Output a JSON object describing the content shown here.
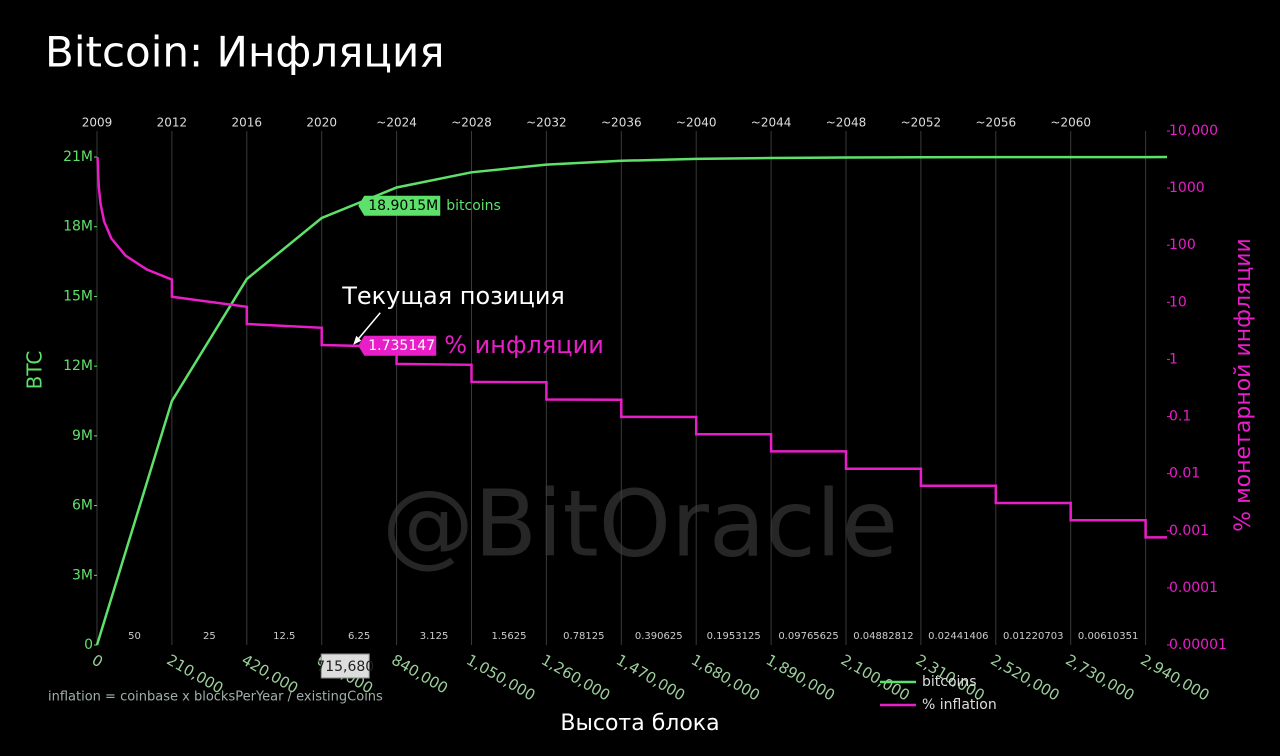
{
  "chart_data": {
    "type": "line",
    "title": "Bitcoin: Инфляция",
    "xlabel": "Высота блока",
    "ylabel": "BTC",
    "y2label": "% монетарной инфляции",
    "watermark": "@BitOracle",
    "formula": "inflation = coinbase x blocksPerYear / existingCoins",
    "xlim": [
      0,
      3000000
    ],
    "xticks": [
      0,
      {
        "value": 210000,
        "label": "210,000"
      },
      {
        "value": 420000,
        "label": "420,000"
      },
      {
        "value": 630000,
        "label": "630,000"
      },
      {
        "value": 840000,
        "label": "840,000"
      },
      {
        "value": 1050000,
        "label": "1,050,000"
      },
      {
        "value": 1260000,
        "label": "1,260,000"
      },
      {
        "value": 1470000,
        "label": "1,470,000"
      },
      {
        "value": 1680000,
        "label": "1,680,000"
      },
      {
        "value": 1890000,
        "label": "1,890,000"
      },
      {
        "value": 2100000,
        "label": "2,100,000"
      },
      {
        "value": 2310000,
        "label": "2,310,000"
      },
      {
        "value": 2520000,
        "label": "2,520,000"
      },
      {
        "value": 2730000,
        "label": "2,730,000"
      },
      {
        "value": 2940000,
        "label": "2,940,000"
      }
    ],
    "top_ticks": [
      {
        "value": 0,
        "label": "2009"
      },
      {
        "value": 210000,
        "label": "2012"
      },
      {
        "value": 420000,
        "label": "2016"
      },
      {
        "value": 630000,
        "label": "2020"
      },
      {
        "value": 840000,
        "label": "~2024"
      },
      {
        "value": 1050000,
        "label": "~2028"
      },
      {
        "value": 1260000,
        "label": "~2032"
      },
      {
        "value": 1470000,
        "label": "~2036"
      },
      {
        "value": 1680000,
        "label": "~2040"
      },
      {
        "value": 1890000,
        "label": "~2044"
      },
      {
        "value": 2100000,
        "label": "~2048"
      },
      {
        "value": 2310000,
        "label": "~2052"
      },
      {
        "value": 2520000,
        "label": "~2056"
      },
      {
        "value": 2730000,
        "label": "~2060"
      }
    ],
    "rewards": [
      50,
      25,
      12.5,
      6.25,
      3.125,
      1.5625,
      0.78125,
      0.390625,
      0.1953125,
      0.09765625,
      0.04882812,
      0.02441406,
      0.01220703,
      0.00610351
    ],
    "ylim": [
      0,
      22120000
    ],
    "yticks": [
      0,
      {
        "value": 3000000,
        "label": "3M"
      },
      {
        "value": 6000000,
        "label": "6M"
      },
      {
        "value": 9000000,
        "label": "9M"
      },
      {
        "value": 12000000,
        "label": "12M"
      },
      {
        "value": 15000000,
        "label": "15M"
      },
      {
        "value": 18000000,
        "label": "18M"
      },
      {
        "value": 21000000,
        "label": "21M"
      }
    ],
    "y2lim": [
      1e-05,
      10000
    ],
    "y2log": true,
    "y2ticks": [
      {
        "value": 10000,
        "label": "10,000"
      },
      1000,
      100,
      10,
      1,
      0.1,
      0.01,
      0.001,
      0.0001,
      {
        "value": 1e-05,
        "label": "0.00001"
      }
    ],
    "grid": true,
    "legend": "bottom-right",
    "series": [
      {
        "name": "bitcoins",
        "color": "#5ee16a",
        "x": [
          0,
          210000,
          420000,
          630000,
          840000,
          1050000,
          1260000,
          1470000,
          1680000,
          1890000,
          2100000,
          2310000,
          2520000,
          2730000,
          2940000,
          3000000
        ],
        "values": [
          0,
          10500000,
          15750000,
          18375000,
          19687500,
          20343750,
          20671875,
          20835938,
          20917969,
          20958984,
          20979492,
          20989746,
          20994873,
          20997437,
          20998718,
          20999000
        ]
      },
      {
        "name": "% inflation",
        "color": "#e81ec8",
        "axis": "y2",
        "x": [
          1500,
          5000,
          10000,
          20000,
          40000,
          80000,
          140000,
          210000,
          210000,
          420000,
          420000,
          630000,
          630000,
          715680,
          840000,
          840000,
          1050000,
          1050000,
          1260000,
          1260000,
          1470000,
          1470000,
          1680000,
          1680000,
          1890000,
          1890000,
          2100000,
          2100000,
          2310000,
          2310000,
          2520000,
          2520000,
          2730000,
          2730000,
          2940000,
          2940000,
          3000000
        ],
        "values": [
          3504,
          1051,
          525.6,
          262.8,
          131.4,
          65.7,
          37.5,
          25.03,
          12.51,
          8.34,
          4.17,
          3.58,
          1.788,
          1.735147,
          1.669,
          0.834,
          0.807,
          0.4037,
          0.3973,
          0.1986,
          0.1971,
          0.0985,
          0.0982,
          0.0491,
          0.049,
          0.0245,
          0.0245,
          0.01224,
          0.01224,
          0.00612,
          0.00612,
          0.00306,
          0.00306,
          0.00153,
          0.00153,
          0.000765,
          0.000765
        ]
      }
    ],
    "current": {
      "note": "Текущая позиция",
      "x": 715680,
      "x_label": "715,680",
      "btc": 18901500,
      "btc_label": "18.9015M",
      "btc_text": "bitcoins",
      "inflation": 1.735147,
      "inflation_text": "% инфляции"
    }
  }
}
